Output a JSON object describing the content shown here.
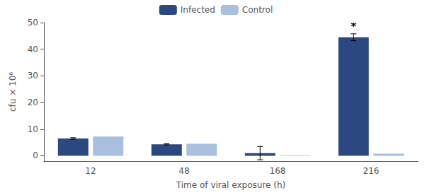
{
  "chart_data": {
    "type": "bar",
    "xlabel": "Time of viral exposure (h)",
    "ylabel": "cfu × 10⁶",
    "categories": [
      "12",
      "48",
      "168",
      "216"
    ],
    "series": [
      {
        "name": "Infected",
        "color": "#2b4880",
        "values": [
          6.5,
          4.3,
          1.0,
          44.5
        ],
        "errors": [
          0.3,
          0.2,
          2.5,
          1.3
        ]
      },
      {
        "name": "Control",
        "color": "#a8c0de",
        "values": [
          7.2,
          4.5,
          0.2,
          0.8
        ]
      }
    ],
    "ylim": [
      -2,
      50
    ],
    "yticks": [
      0,
      10,
      20,
      30,
      40,
      50
    ],
    "grid": false,
    "legend": "top",
    "annotations": [
      {
        "text": "*",
        "category": "216",
        "series": "Infected"
      }
    ]
  }
}
